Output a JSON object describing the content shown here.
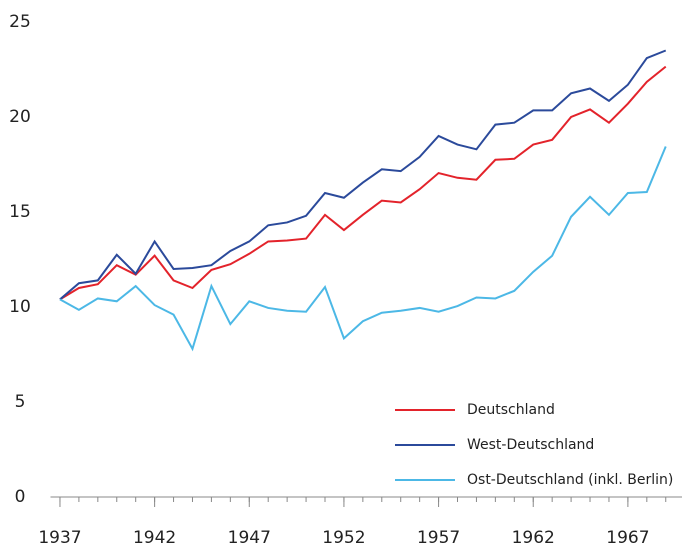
{
  "chart_data": {
    "type": "line",
    "x": [
      1937,
      1938,
      1939,
      1940,
      1941,
      1942,
      1943,
      1944,
      1945,
      1946,
      1947,
      1948,
      1949,
      1950,
      1951,
      1952,
      1953,
      1954,
      1955,
      1956,
      1957,
      1958,
      1959,
      1960,
      1961,
      1962,
      1963,
      1964,
      1965,
      1966,
      1967,
      1968,
      1969
    ],
    "series": [
      {
        "name": "Deutschland",
        "color": "#e3232b",
        "values": [
          10.4,
          11.0,
          11.2,
          12.2,
          11.7,
          12.7,
          11.4,
          11.0,
          11.95,
          12.25,
          12.8,
          13.45,
          13.5,
          13.6,
          14.85,
          14.05,
          14.85,
          15.6,
          15.5,
          16.2,
          17.05,
          16.8,
          16.7,
          17.75,
          17.8,
          18.55,
          18.8,
          20.0,
          20.4,
          19.7,
          20.7,
          21.85,
          22.65
        ]
      },
      {
        "name": "West-Deutschland",
        "color": "#2b4a9b",
        "values": [
          10.4,
          11.25,
          11.4,
          12.75,
          11.75,
          13.45,
          12.0,
          12.05,
          12.2,
          12.95,
          13.45,
          14.3,
          14.45,
          14.8,
          16.0,
          15.75,
          16.55,
          17.25,
          17.15,
          17.9,
          19.0,
          18.55,
          18.3,
          19.6,
          19.7,
          20.35,
          20.35,
          21.25,
          21.5,
          20.85,
          21.7,
          23.1,
          23.5
        ]
      },
      {
        "name": "Ost-Deutschland (inkl. Berlin)",
        "color": "#4cb8e6",
        "values": [
          10.4,
          9.85,
          10.45,
          10.3,
          11.1,
          10.1,
          9.6,
          7.8,
          11.1,
          9.1,
          10.3,
          9.95,
          9.8,
          9.75,
          11.05,
          8.35,
          9.25,
          9.7,
          9.8,
          9.95,
          9.75,
          10.05,
          10.5,
          10.45,
          10.85,
          11.85,
          12.7,
          14.75,
          15.8,
          14.85,
          16.0,
          16.05,
          18.45
        ]
      }
    ],
    "xlim": [
      1936.5,
      1969.7
    ],
    "xticks": [
      1937,
      1942,
      1947,
      1952,
      1957,
      1962,
      1967
    ],
    "ylim": [
      0,
      25
    ],
    "yticks": [
      0,
      5,
      10,
      15,
      20,
      25
    ],
    "grid": false,
    "legend": "lower right"
  }
}
